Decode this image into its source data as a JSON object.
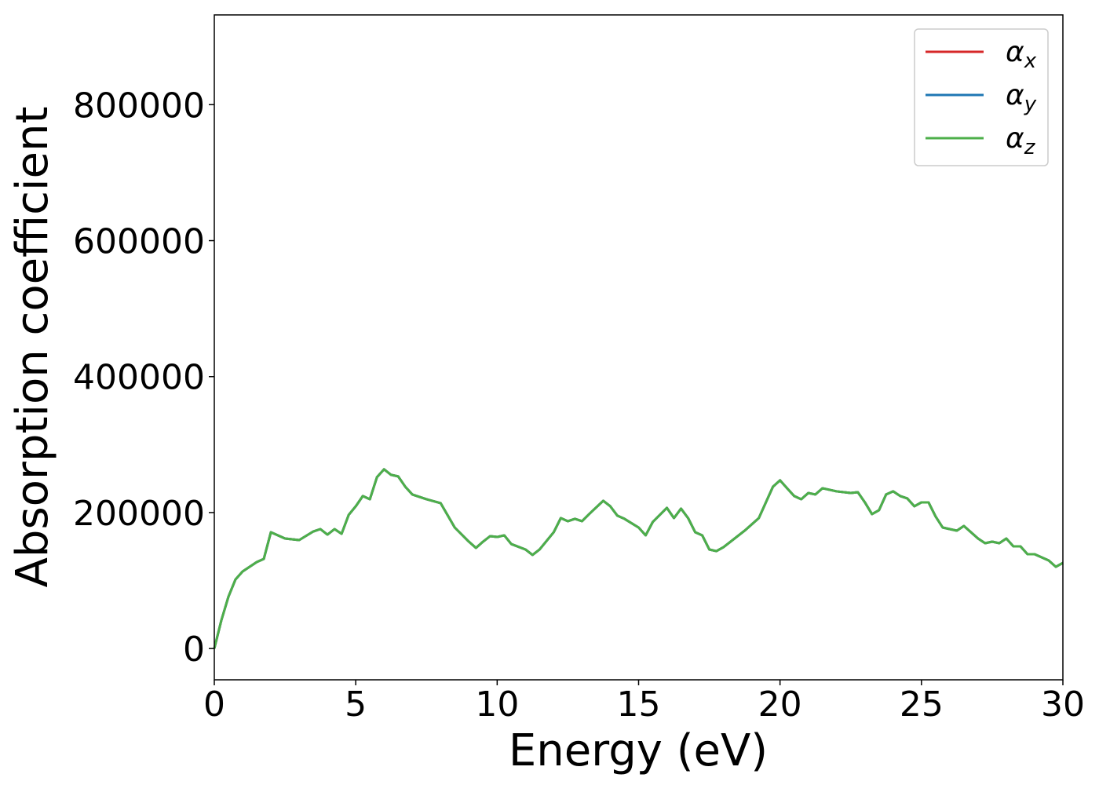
{
  "chart_data": {
    "type": "line",
    "xlabel": "Energy (eV)",
    "ylabel": "Absorption coefficient",
    "x": [
      0,
      0.25,
      0.5,
      0.75,
      1.0,
      1.25,
      1.5,
      1.75,
      2.0,
      2.5,
      3.0,
      3.5,
      3.75,
      4.0,
      4.25,
      4.5,
      4.75,
      5.0,
      5.25,
      5.5,
      5.75,
      6.0,
      6.25,
      6.5,
      6.75,
      7.0,
      7.5,
      8.0,
      8.5,
      9.0,
      9.25,
      9.5,
      9.75,
      10,
      10.25,
      10.5,
      11,
      11.25,
      11.5,
      12,
      12.25,
      12.5,
      12.75,
      13,
      13.25,
      13.75,
      14,
      14.25,
      14.5,
      15,
      15.25,
      15.5,
      16,
      16.25,
      16.5,
      16.75,
      17,
      17.25,
      17.5,
      17.75,
      18,
      18.25,
      18.75,
      19,
      19.25,
      19.5,
      19.75,
      20,
      20.25,
      20.5,
      20.75,
      21,
      21.25,
      21.5,
      22,
      22.5,
      22.75,
      23,
      23.25,
      23.5,
      23.75,
      24,
      24.25,
      24.5,
      24.75,
      25,
      25.25,
      25.5,
      25.75,
      26,
      26.25,
      26.5,
      27,
      27.25,
      27.5,
      27.75,
      28,
      28.25,
      28.5,
      28.75,
      29,
      29.5,
      29.75,
      30
    ],
    "series": [
      {
        "name": "αx",
        "color": "#d62728",
        "values": [
          0,
          41600,
          76300,
          101700,
          113300,
          120200,
          127200,
          131800,
          171100,
          161800,
          159500,
          172200,
          175700,
          167600,
          175700,
          168800,
          196500,
          209200,
          224300,
          219600,
          252000,
          263600,
          255500,
          253200,
          238100,
          226600,
          219600,
          213900,
          178000,
          157200,
          148000,
          157200,
          165300,
          164100,
          166500,
          153700,
          145700,
          137600,
          145700,
          171100,
          191900,
          187300,
          190800,
          187300,
          197700,
          217300,
          209200,
          195400,
          190800,
          178000,
          166500,
          186100,
          206900,
          191900,
          205800,
          191900,
          171100,
          166500,
          145700,
          143300,
          149100,
          157200,
          173400,
          182600,
          191900,
          215000,
          238100,
          247400,
          235800,
          224300,
          219600,
          228800,
          226600,
          235800,
          231200,
          228800,
          230000,
          215000,
          197700,
          203500,
          226600,
          231200,
          224300,
          220800,
          209200,
          215000,
          215000,
          194200,
          178000,
          175700,
          173400,
          180300,
          161800,
          154900,
          157200,
          154900,
          161800,
          150300,
          150300,
          138700,
          138700,
          129500,
          120200,
          126000
        ]
      },
      {
        "name": "αy",
        "color": "#1f77b4",
        "values": [
          0,
          41600,
          76300,
          101700,
          113300,
          120200,
          127200,
          131800,
          171100,
          161800,
          159500,
          172200,
          175700,
          167600,
          175700,
          168800,
          196500,
          209200,
          224300,
          219600,
          252000,
          263600,
          255500,
          253200,
          238100,
          226600,
          219600,
          213900,
          178000,
          157200,
          148000,
          157200,
          165300,
          164100,
          166500,
          153700,
          145700,
          137600,
          145700,
          171100,
          191900,
          187300,
          190800,
          187300,
          197700,
          217300,
          209200,
          195400,
          190800,
          178000,
          166500,
          186100,
          206900,
          191900,
          205800,
          191900,
          171100,
          166500,
          145700,
          143300,
          149100,
          157200,
          173400,
          182600,
          191900,
          215000,
          238100,
          247400,
          235800,
          224300,
          219600,
          228800,
          226600,
          235800,
          231200,
          228800,
          230000,
          215000,
          197700,
          203500,
          226600,
          231200,
          224300,
          220800,
          209200,
          215000,
          215000,
          194200,
          178000,
          175700,
          173400,
          180300,
          161800,
          154900,
          157200,
          154900,
          161800,
          150300,
          150300,
          138700,
          138700,
          129500,
          120200,
          126000
        ]
      },
      {
        "name": "αz",
        "color": "#4daf4a",
        "values": [
          0,
          41600,
          76300,
          101700,
          113300,
          120200,
          127200,
          131800,
          171100,
          161800,
          159500,
          172200,
          175700,
          167600,
          175700,
          168800,
          196500,
          209200,
          224300,
          219600,
          252000,
          263600,
          255500,
          253200,
          238100,
          226600,
          219600,
          213900,
          178000,
          157200,
          148000,
          157200,
          165300,
          164100,
          166500,
          153700,
          145700,
          137600,
          145700,
          171100,
          191900,
          187300,
          190800,
          187300,
          197700,
          217300,
          209200,
          195400,
          190800,
          178000,
          166500,
          186100,
          206900,
          191900,
          205800,
          191900,
          171100,
          166500,
          145700,
          143300,
          149100,
          157200,
          173400,
          182600,
          191900,
          215000,
          238100,
          247400,
          235800,
          224300,
          219600,
          228800,
          226600,
          235800,
          231200,
          228800,
          230000,
          215000,
          197700,
          203500,
          226600,
          231200,
          224300,
          220800,
          209200,
          215000,
          215000,
          194200,
          178000,
          175700,
          173400,
          180300,
          161800,
          154900,
          157200,
          154900,
          161800,
          150300,
          150300,
          138700,
          138700,
          129500,
          120200,
          126000
        ]
      }
    ],
    "xlim": [
      0,
      30
    ],
    "ylim": [
      -46000,
      932000
    ],
    "xticks": [
      0,
      5,
      10,
      15,
      20,
      25,
      30
    ],
    "yticks": [
      0,
      200000,
      400000,
      600000,
      800000
    ],
    "legend": "upper right",
    "grid": false
  }
}
